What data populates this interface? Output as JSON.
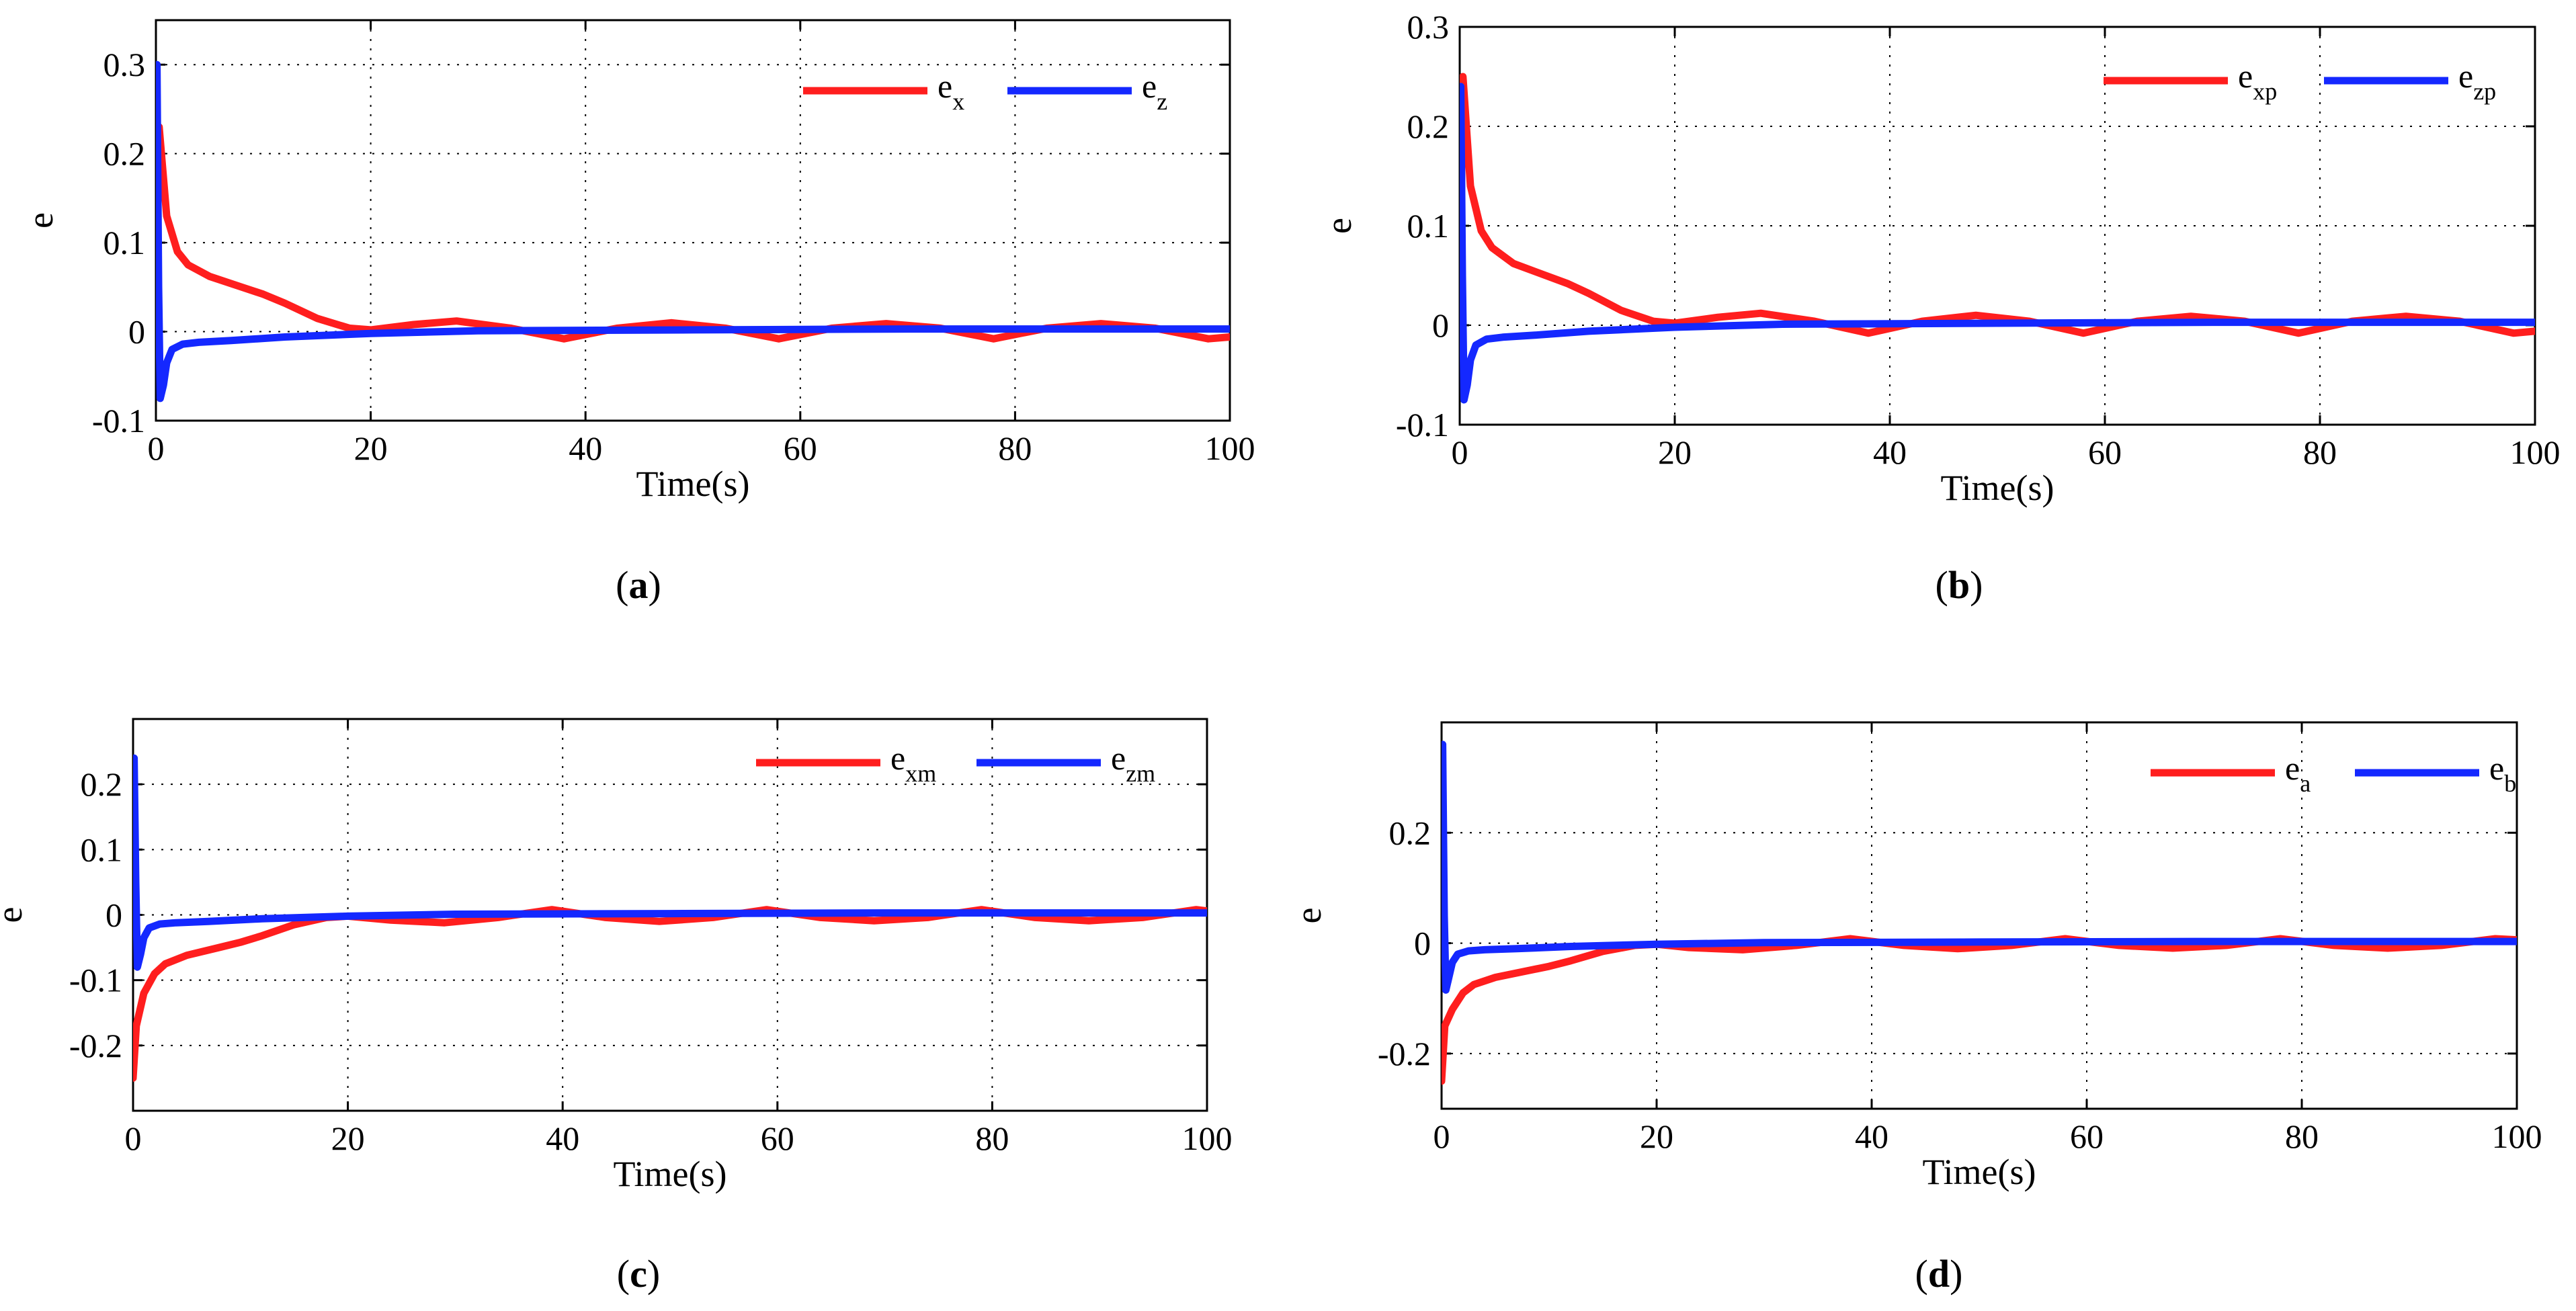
{
  "colors": {
    "red": "#ff1e1e",
    "blue": "#1428ff"
  },
  "chart_data": [
    {
      "type": "line",
      "id": "a",
      "caption_letter": "a",
      "xlabel": "Time(s)",
      "ylabel": "e",
      "xlim": [
        0,
        100
      ],
      "ylim": [
        -0.1,
        0.35
      ],
      "xticks": [
        0,
        20,
        40,
        60,
        80,
        100
      ],
      "yticks": [
        -0.1,
        0,
        0.1,
        0.2,
        0.3
      ],
      "ytick_labels": [
        "-0.1",
        "0",
        "0.1",
        "0.2",
        "0.3"
      ],
      "xtick_labels": [
        "0",
        "20",
        "40",
        "60",
        "80",
        "100"
      ],
      "grid": true,
      "legend_position": "top-right",
      "series": [
        {
          "name": "e_x",
          "legend_main": "e",
          "legend_sub": "x",
          "color": "red",
          "x": [
            0,
            0.3,
            1,
            2,
            3,
            5,
            8,
            10,
            12,
            15,
            18,
            20,
            24,
            28,
            33,
            38,
            43,
            48,
            53,
            58,
            63,
            68,
            73,
            78,
            83,
            88,
            93,
            98,
            100
          ],
          "y": [
            0,
            0.23,
            0.13,
            0.09,
            0.075,
            0.062,
            0.05,
            0.042,
            0.032,
            0.015,
            0.004,
            0.002,
            0.008,
            0.012,
            0.004,
            -0.008,
            0.004,
            0.01,
            0.004,
            -0.008,
            0.004,
            0.009,
            0.004,
            -0.008,
            0.004,
            0.009,
            0.004,
            -0.008,
            -0.006
          ]
        },
        {
          "name": "e_z",
          "legend_main": "e",
          "legend_sub": "z",
          "color": "blue",
          "x": [
            0,
            0.1,
            0.25,
            0.4,
            0.7,
            1,
            1.5,
            2.5,
            4,
            7,
            12,
            20,
            30,
            50,
            70,
            100
          ],
          "y": [
            0,
            0.3,
            0.05,
            -0.075,
            -0.06,
            -0.035,
            -0.02,
            -0.014,
            -0.012,
            -0.01,
            -0.006,
            -0.002,
            0.001,
            0.002,
            0.003,
            0.003
          ]
        }
      ]
    },
    {
      "type": "line",
      "id": "b",
      "caption_letter": "b",
      "xlabel": "Time(s)",
      "ylabel": "e",
      "xlim": [
        0,
        100
      ],
      "ylim": [
        -0.1,
        0.3
      ],
      "xticks": [
        0,
        20,
        40,
        60,
        80,
        100
      ],
      "yticks": [
        -0.1,
        0,
        0.1,
        0.2,
        0.3
      ],
      "ytick_labels": [
        "-0.1",
        "0",
        "0.1",
        "0.2",
        "0.3"
      ],
      "xtick_labels": [
        "0",
        "20",
        "40",
        "60",
        "80",
        "100"
      ],
      "grid": true,
      "legend_position": "top-right",
      "series": [
        {
          "name": "e_xp",
          "legend_main": "e",
          "legend_sub": "xp",
          "color": "red",
          "x": [
            0,
            0.3,
            1,
            2,
            3,
            5,
            8,
            10,
            12,
            15,
            18,
            20,
            24,
            28,
            33,
            38,
            43,
            48,
            53,
            58,
            63,
            68,
            73,
            78,
            83,
            88,
            93,
            98,
            100
          ],
          "y": [
            0,
            0.25,
            0.14,
            0.095,
            0.078,
            0.062,
            0.05,
            0.042,
            0.032,
            0.015,
            0.004,
            0.002,
            0.008,
            0.012,
            0.004,
            -0.008,
            0.004,
            0.01,
            0.004,
            -0.008,
            0.004,
            0.009,
            0.004,
            -0.008,
            0.004,
            0.009,
            0.004,
            -0.008,
            -0.006
          ]
        },
        {
          "name": "e_zp",
          "legend_main": "e",
          "legend_sub": "zp",
          "color": "blue",
          "x": [
            0,
            0.1,
            0.25,
            0.4,
            0.7,
            1,
            1.5,
            2.5,
            4,
            7,
            12,
            20,
            30,
            50,
            70,
            100
          ],
          "y": [
            0,
            0.24,
            0.05,
            -0.075,
            -0.06,
            -0.035,
            -0.02,
            -0.014,
            -0.012,
            -0.01,
            -0.006,
            -0.002,
            0.001,
            0.002,
            0.003,
            0.003
          ]
        }
      ]
    },
    {
      "type": "line",
      "id": "c",
      "caption_letter": "c",
      "xlabel": "Time(s)",
      "ylabel": "e",
      "xlim": [
        0,
        100
      ],
      "ylim": [
        -0.3,
        0.3
      ],
      "xticks": [
        0,
        20,
        40,
        60,
        80,
        100
      ],
      "yticks": [
        -0.2,
        -0.1,
        0,
        0.1,
        0.2
      ],
      "ytick_labels": [
        "-0.2",
        "-0.1",
        "0",
        "0.1",
        "0.2"
      ],
      "xtick_labels": [
        "0",
        "20",
        "40",
        "60",
        "80",
        "100"
      ],
      "grid": true,
      "legend_position": "top-right",
      "series": [
        {
          "name": "e_xm",
          "legend_main": "e",
          "legend_sub": "xm",
          "color": "red",
          "x": [
            0,
            0.3,
            1,
            2,
            3,
            5,
            8,
            10,
            12,
            15,
            18,
            20,
            24,
            29,
            34,
            39,
            44,
            49,
            54,
            59,
            64,
            69,
            74,
            79,
            84,
            89,
            94,
            99,
            100
          ],
          "y": [
            -0.25,
            -0.17,
            -0.12,
            -0.09,
            -0.075,
            -0.062,
            -0.05,
            -0.042,
            -0.032,
            -0.015,
            -0.004,
            -0.002,
            -0.008,
            -0.012,
            -0.004,
            0.008,
            -0.004,
            -0.01,
            -0.004,
            0.008,
            -0.004,
            -0.009,
            -0.004,
            0.008,
            -0.004,
            -0.009,
            -0.004,
            0.008,
            0.006
          ]
        },
        {
          "name": "e_zm",
          "legend_main": "e",
          "legend_sub": "zm",
          "color": "blue",
          "x": [
            0,
            0.1,
            0.25,
            0.4,
            0.7,
            1,
            1.5,
            2.5,
            4,
            7,
            12,
            20,
            30,
            50,
            70,
            100
          ],
          "y": [
            0,
            0.24,
            0.05,
            -0.08,
            -0.06,
            -0.035,
            -0.02,
            -0.014,
            -0.012,
            -0.01,
            -0.006,
            -0.002,
            0.001,
            0.002,
            0.003,
            0.003
          ]
        }
      ]
    },
    {
      "type": "line",
      "id": "d",
      "caption_letter": "d",
      "xlabel": "Time(s)",
      "ylabel": "e",
      "xlim": [
        0,
        100
      ],
      "ylim": [
        -0.3,
        0.4
      ],
      "xticks": [
        0,
        20,
        40,
        60,
        80,
        100
      ],
      "yticks": [
        -0.2,
        0,
        0.2
      ],
      "ytick_labels": [
        "-0.2",
        "0",
        "0.2"
      ],
      "xtick_labels": [
        "0",
        "20",
        "40",
        "60",
        "80",
        "100"
      ],
      "grid": true,
      "legend_position": "top-right",
      "series": [
        {
          "name": "e_a",
          "legend_main": "e",
          "legend_sub": "a",
          "color": "red",
          "x": [
            0,
            0.3,
            1,
            2,
            3,
            5,
            8,
            10,
            12,
            15,
            18,
            20,
            23,
            28,
            33,
            38,
            43,
            48,
            53,
            58,
            63,
            68,
            73,
            78,
            83,
            88,
            93,
            98,
            100
          ],
          "y": [
            -0.25,
            -0.15,
            -0.12,
            -0.09,
            -0.075,
            -0.062,
            -0.05,
            -0.042,
            -0.032,
            -0.015,
            -0.004,
            -0.002,
            -0.008,
            -0.012,
            -0.004,
            0.008,
            -0.004,
            -0.01,
            -0.004,
            0.008,
            -0.004,
            -0.009,
            -0.004,
            0.008,
            -0.004,
            -0.009,
            -0.004,
            0.008,
            0.006
          ]
        },
        {
          "name": "e_b",
          "legend_main": "e",
          "legend_sub": "b",
          "color": "blue",
          "x": [
            0,
            0.1,
            0.25,
            0.4,
            0.7,
            1,
            1.5,
            2.5,
            4,
            7,
            12,
            20,
            30,
            50,
            70,
            100
          ],
          "y": [
            0,
            0.36,
            0.05,
            -0.085,
            -0.06,
            -0.035,
            -0.02,
            -0.014,
            -0.012,
            -0.01,
            -0.006,
            -0.002,
            0.001,
            0.002,
            0.003,
            0.003
          ]
        }
      ]
    }
  ]
}
